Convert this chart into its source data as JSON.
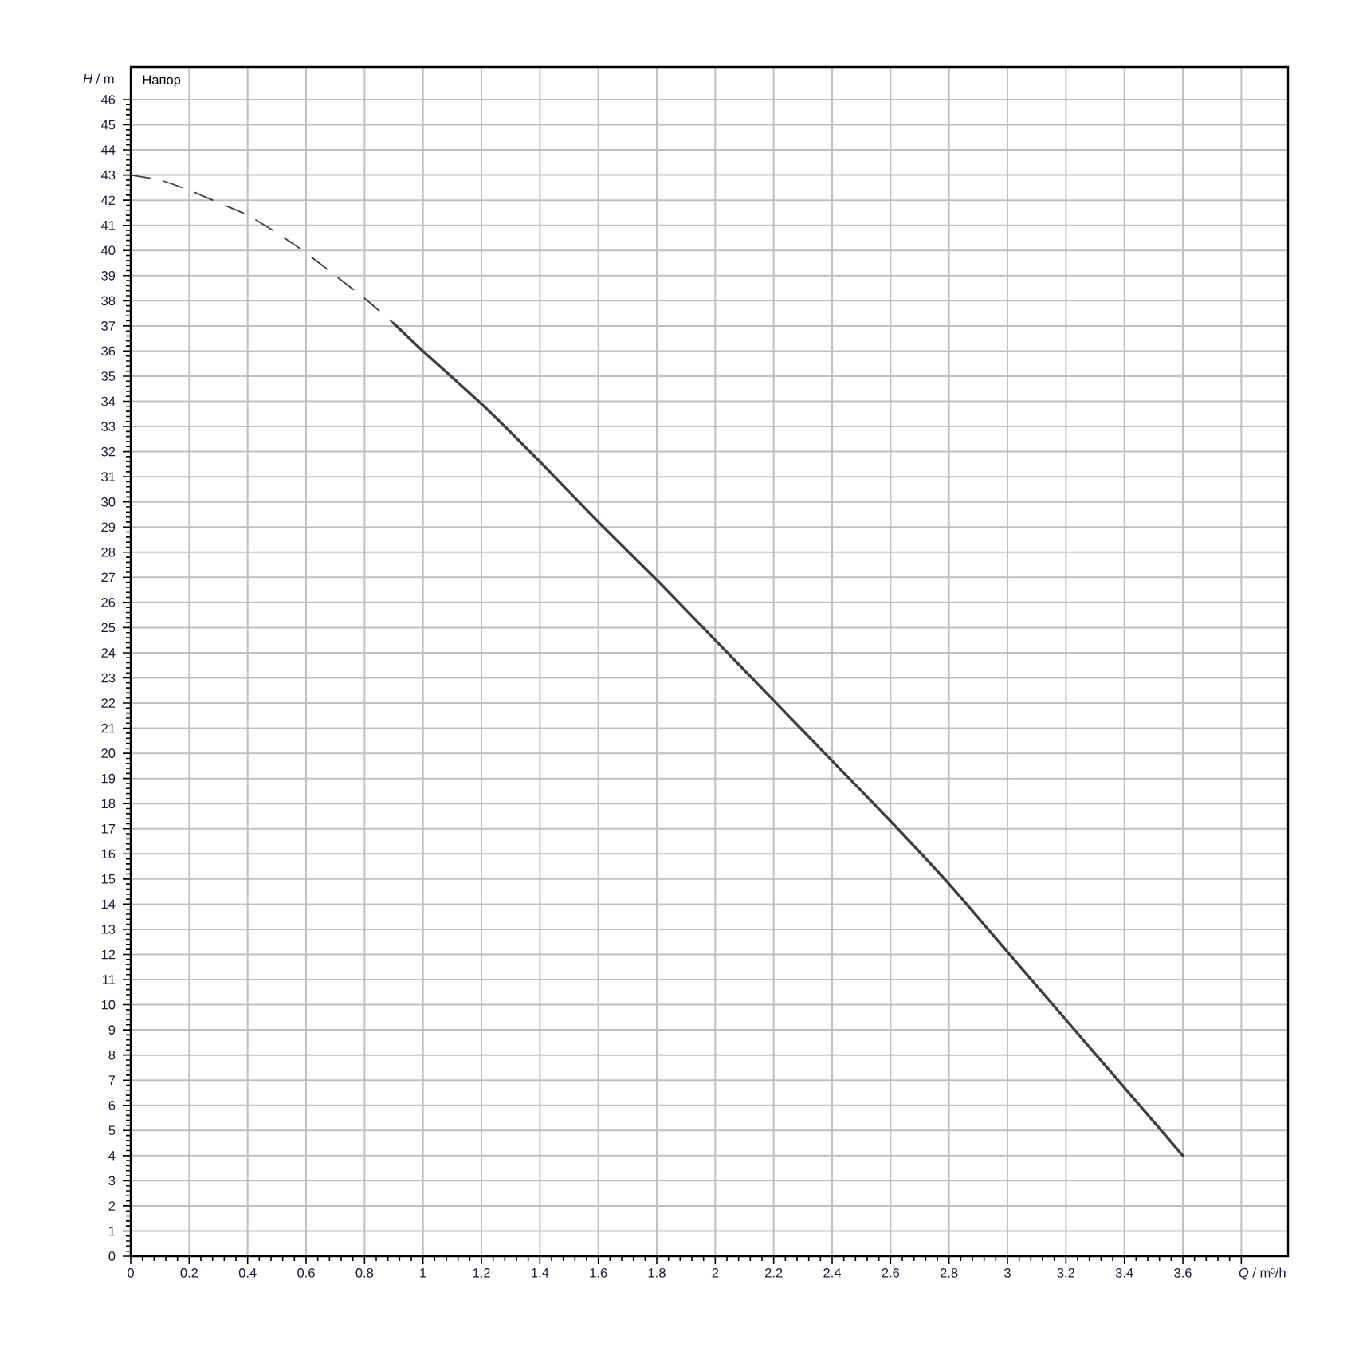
{
  "chart_data": {
    "type": "line",
    "xlabel": "*Q* / m³/h",
    "ylabel": "*H* / m",
    "annotations": [
      "Напор"
    ],
    "xlim": [
      0,
      3.96
    ],
    "ylim": [
      0,
      47.3
    ],
    "xticks": [
      0,
      0.2,
      0.4,
      0.6,
      0.8,
      1,
      1.2,
      1.4,
      1.6,
      1.8,
      2,
      2.2,
      2.4,
      2.6,
      2.8,
      3,
      3.2,
      3.4,
      3.6,
      {
        "value": 3.8,
        "label": null
      }
    ],
    "yticks": [
      0,
      1,
      2,
      3,
      4,
      5,
      6,
      7,
      8,
      9,
      10,
      11,
      12,
      13,
      14,
      15,
      16,
      17,
      18,
      19,
      20,
      21,
      22,
      23,
      24,
      25,
      26,
      27,
      28,
      29,
      30,
      31,
      32,
      33,
      34,
      35,
      36,
      37,
      38,
      39,
      40,
      41,
      42,
      43,
      44,
      45,
      46
    ],
    "grid": true,
    "series": [
      {
        "color": "#3a3f48",
        "line_style": "dashed",
        "x": [
          0,
          0.1,
          0.2,
          0.3,
          0.4,
          0.5,
          0.6,
          0.7,
          0.8,
          0.9
        ],
        "values": [
          43.0,
          42.8,
          42.4,
          41.9,
          41.4,
          40.7,
          39.9,
          39.0,
          38.1,
          37.1
        ]
      },
      {
        "color": "#3a3f48",
        "line_style": "solid",
        "x": [
          0.9,
          1.0,
          1.2,
          1.4,
          1.6,
          1.8,
          2.0,
          2.2,
          2.4,
          2.6,
          2.8,
          3.0,
          3.2,
          3.4,
          3.6
        ],
        "values": [
          37.1,
          36.0,
          33.9,
          31.6,
          29.2,
          26.9,
          24.5,
          22.1,
          19.7,
          17.3,
          14.8,
          12.1,
          9.4,
          6.7,
          4.0
        ]
      }
    ]
  }
}
